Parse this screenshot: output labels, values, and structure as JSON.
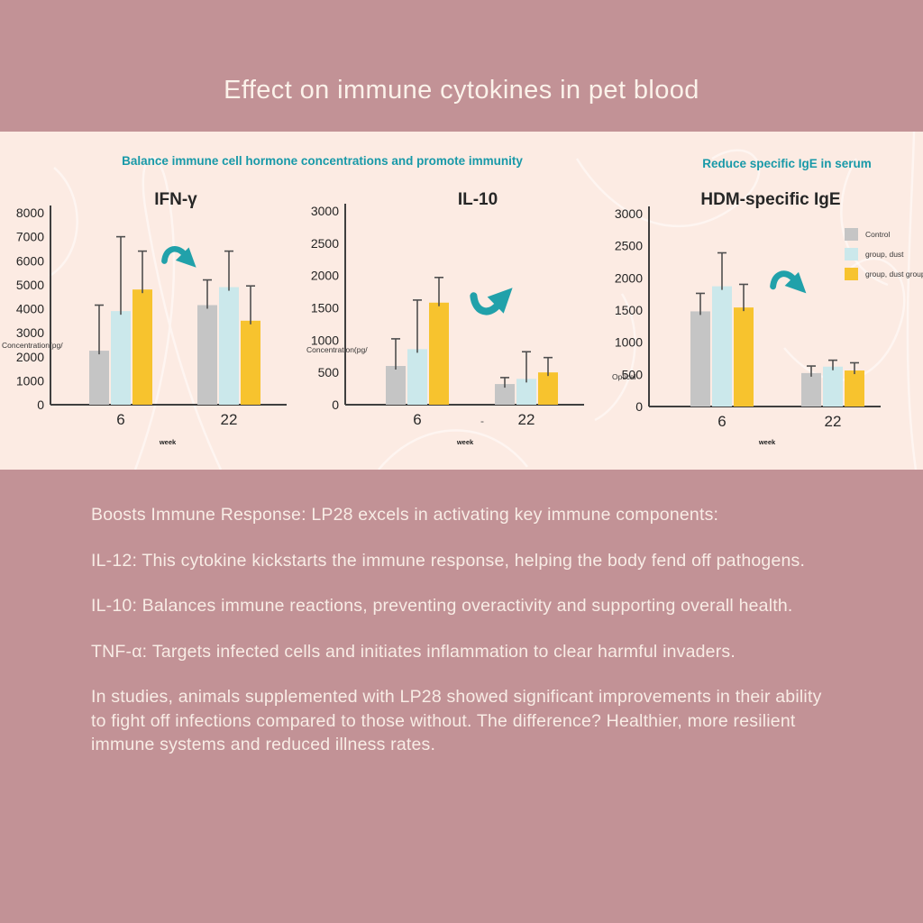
{
  "page": {
    "title": "Effect on immune cytokines in pet blood"
  },
  "section_labels": {
    "left": "Balance immune cell hormone concentrations and promote immunity",
    "right": "Reduce specific IgE in serum"
  },
  "colors": {
    "mauve": "#c29296",
    "pink": "#fcebe3",
    "teal": "#21a1aa",
    "teal_text": "#1899a8",
    "axis": "#3f3f3f",
    "ink": "#262626",
    "cream": "#f8ece5"
  },
  "legend": {
    "items": [
      {
        "label": "Control",
        "color": "#c5c5c5"
      },
      {
        "label": "group, dust",
        "color": "#cbe8eb"
      },
      {
        "label": "group, dust group -",
        "color": "#f7c32e"
      }
    ]
  },
  "chart_data": [
    {
      "type": "bar",
      "title": "IFN-γ",
      "ylabel": "Concentration(pg/",
      "xlabel": "week",
      "categories": [
        "6",
        "22"
      ],
      "ylim": [
        0,
        8000
      ],
      "ytick_step": 1000,
      "grid": false,
      "arrow": "down",
      "series": [
        {
          "name": "Control",
          "values": [
            2250,
            4150
          ],
          "error_top": [
            4150,
            5200
          ]
        },
        {
          "name": "group, dust",
          "values": [
            3900,
            4900
          ],
          "error_top": [
            7000,
            6400
          ]
        },
        {
          "name": "group, dust group",
          "values": [
            4800,
            3500
          ],
          "error_top": [
            6400,
            4950
          ]
        }
      ]
    },
    {
      "type": "bar",
      "title": "IL-10",
      "ylabel": "Concentration(pg/",
      "xlabel": "week",
      "axis_note": "-",
      "categories": [
        "6",
        "22"
      ],
      "ylim": [
        0,
        3000
      ],
      "ytick_step": 500,
      "grid": false,
      "arrow": "up",
      "series": [
        {
          "name": "Control",
          "values": [
            600,
            320
          ],
          "error_top": [
            1020,
            420
          ]
        },
        {
          "name": "group, dust",
          "values": [
            860,
            400
          ],
          "error_top": [
            1620,
            820
          ]
        },
        {
          "name": "group, dust group",
          "values": [
            1580,
            500
          ],
          "error_top": [
            1970,
            730
          ]
        }
      ]
    },
    {
      "type": "bar",
      "title": "HDM-specific IgE",
      "ylabel": "Optical",
      "xlabel": "week",
      "categories": [
        "6",
        "22"
      ],
      "ylim": [
        0,
        3000
      ],
      "ytick_step": 500,
      "grid": false,
      "arrow": "down",
      "legend_position": "right",
      "series": [
        {
          "name": "Control",
          "values": [
            1480,
            520
          ],
          "error_top": [
            1760,
            630
          ]
        },
        {
          "name": "group, dust",
          "values": [
            1870,
            620
          ],
          "error_top": [
            2390,
            720
          ]
        },
        {
          "name": "group, dust group",
          "values": [
            1540,
            560
          ],
          "error_top": [
            1900,
            680
          ]
        }
      ]
    }
  ],
  "body": {
    "paragraphs": [
      "Boosts Immune Response: LP28 excels in activating key immune components:",
      "IL-12: This cytokine kickstarts the immune response, helping the body fend off pathogens.",
      "IL-10: Balances immune reactions, preventing overactivity and supporting overall health.",
      "TNF-α: Targets infected cells and initiates inflammation to clear harmful invaders.",
      "In studies, animals supplemented with LP28 showed significant improvements in their ability to fight off infections compared to those without. The difference? Healthier, more resilient immune systems and reduced illness rates."
    ]
  }
}
